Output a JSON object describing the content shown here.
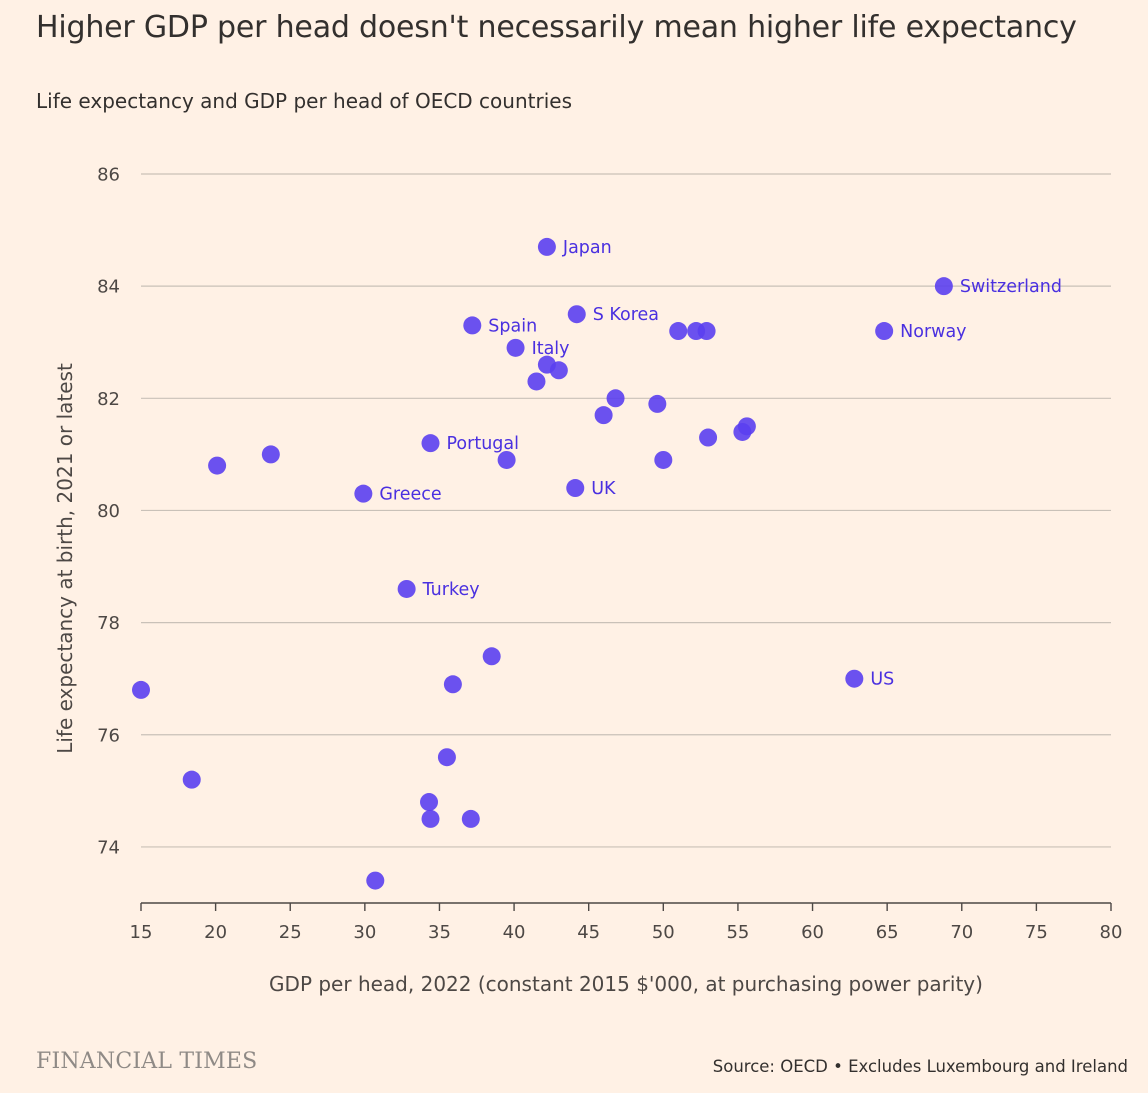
{
  "header": {
    "title": "Higher GDP per head doesn't necessarily mean higher life expectancy",
    "subtitle": "Life expectancy and GDP per head of OECD countries"
  },
  "footer": {
    "brand": "FINANCIAL TIMES",
    "source": "Source: OECD • Excludes Luxembourg and Ireland"
  },
  "colors": {
    "background": "#fff1e5",
    "point": "#5b3ff0",
    "label": "#4a30e0",
    "grid": "#c9c1b8",
    "text": "#33302e"
  },
  "chart_data": {
    "type": "scatter",
    "title": "Higher GDP per head doesn't necessarily mean higher life expectancy",
    "subtitle": "Life expectancy and GDP per head of OECD countries",
    "xlabel": "GDP per head, 2022 (constant 2015 $'000, at purchasing power parity)",
    "ylabel": "Life expectancy at birth, 2021 or latest",
    "xlim": [
      15,
      80
    ],
    "ylim": [
      73,
      86
    ],
    "xticks": [
      15,
      20,
      25,
      30,
      35,
      40,
      45,
      50,
      55,
      60,
      65,
      70,
      75,
      80
    ],
    "yticks": [
      74,
      76,
      78,
      80,
      82,
      84,
      86
    ],
    "grid": "horizontal",
    "points": [
      {
        "x": 42.2,
        "y": 84.7,
        "label": "Japan"
      },
      {
        "x": 68.8,
        "y": 84.0,
        "label": "Switzerland"
      },
      {
        "x": 44.2,
        "y": 83.5,
        "label": "S Korea"
      },
      {
        "x": 37.2,
        "y": 83.3,
        "label": "Spain"
      },
      {
        "x": 64.8,
        "y": 83.2,
        "label": "Norway"
      },
      {
        "x": 51.0,
        "y": 83.2
      },
      {
        "x": 52.2,
        "y": 83.2
      },
      {
        "x": 52.9,
        "y": 83.2
      },
      {
        "x": 40.1,
        "y": 82.9,
        "label": "Italy"
      },
      {
        "x": 42.2,
        "y": 82.6
      },
      {
        "x": 43.0,
        "y": 82.5
      },
      {
        "x": 41.5,
        "y": 82.3
      },
      {
        "x": 46.8,
        "y": 82.0
      },
      {
        "x": 49.6,
        "y": 81.9
      },
      {
        "x": 46.0,
        "y": 81.7
      },
      {
        "x": 55.6,
        "y": 81.5
      },
      {
        "x": 55.3,
        "y": 81.4
      },
      {
        "x": 53.0,
        "y": 81.3
      },
      {
        "x": 34.4,
        "y": 81.2,
        "label": "Portugal"
      },
      {
        "x": 23.7,
        "y": 81.0
      },
      {
        "x": 39.5,
        "y": 80.9
      },
      {
        "x": 50.0,
        "y": 80.9
      },
      {
        "x": 20.1,
        "y": 80.8
      },
      {
        "x": 44.1,
        "y": 80.4,
        "label": "UK"
      },
      {
        "x": 29.9,
        "y": 80.3,
        "label": "Greece"
      },
      {
        "x": 32.8,
        "y": 78.6,
        "label": "Turkey"
      },
      {
        "x": 38.5,
        "y": 77.4
      },
      {
        "x": 62.8,
        "y": 77.0,
        "label": "US"
      },
      {
        "x": 35.9,
        "y": 76.9
      },
      {
        "x": 15.0,
        "y": 76.8
      },
      {
        "x": 35.5,
        "y": 75.6
      },
      {
        "x": 18.4,
        "y": 75.2
      },
      {
        "x": 34.3,
        "y": 74.8
      },
      {
        "x": 34.4,
        "y": 74.5
      },
      {
        "x": 37.1,
        "y": 74.5
      },
      {
        "x": 30.7,
        "y": 73.4
      }
    ]
  }
}
